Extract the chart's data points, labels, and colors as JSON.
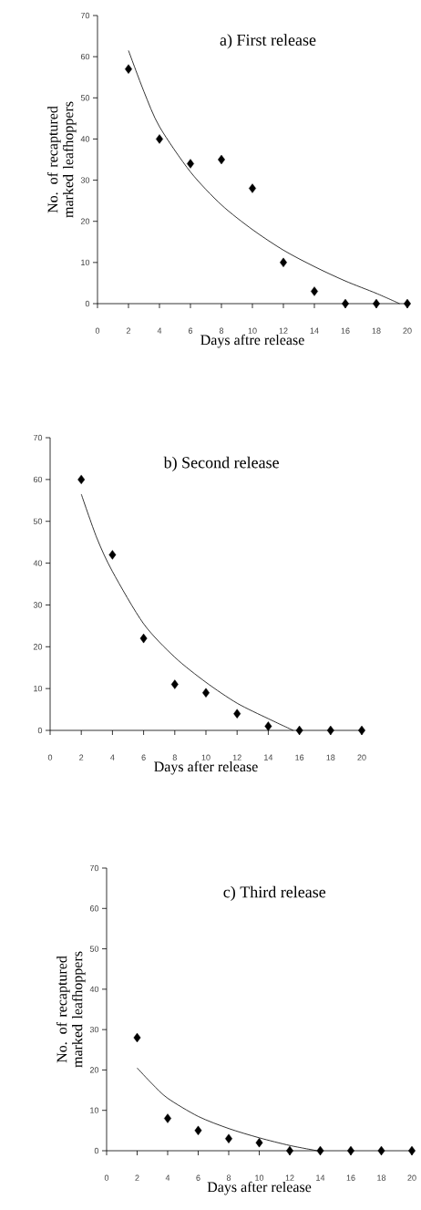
{
  "chart_data": [
    {
      "type": "scatter",
      "title": "a) First release",
      "xlabel": "Days aftre release",
      "ylabel": "No. of recaptured marked leafhoppers",
      "marker": "diamond",
      "xlim": [
        0,
        20
      ],
      "ylim": [
        0,
        70
      ],
      "xticks": [
        0,
        2,
        4,
        6,
        8,
        10,
        12,
        14,
        16,
        18,
        20
      ],
      "yticks": [
        0,
        10,
        20,
        30,
        40,
        50,
        60,
        70
      ],
      "series": [
        {
          "color": "#000000",
          "x": [
            2,
            4,
            6,
            8,
            10,
            12,
            14,
            16,
            18,
            20
          ],
          "values": [
            57,
            40,
            34,
            35,
            28,
            10,
            3,
            0,
            0,
            0
          ]
        },
        {
          "type": "line",
          "marker": "none",
          "color": "#000000",
          "x": [
            2,
            3,
            4,
            6,
            8,
            10,
            12,
            14,
            16,
            18,
            19.5
          ],
          "values": [
            61.5,
            51.5,
            43,
            32,
            24,
            18,
            13,
            9,
            5.5,
            2.5,
            0
          ]
        }
      ]
    },
    {
      "type": "scatter",
      "title": "b) Second release",
      "xlabel": "Days after release",
      "marker": "diamond",
      "xlim": [
        0,
        20
      ],
      "ylim": [
        0,
        70
      ],
      "xticks": [
        0,
        2,
        4,
        6,
        8,
        10,
        12,
        14,
        16,
        18,
        20
      ],
      "yticks": [
        0,
        10,
        20,
        30,
        40,
        50,
        60,
        70
      ],
      "series": [
        {
          "color": "#000000",
          "x": [
            2,
            4,
            6,
            8,
            10,
            12,
            14,
            16,
            18,
            20
          ],
          "values": [
            60,
            42,
            22,
            11,
            9,
            4,
            1,
            0,
            0,
            0
          ]
        },
        {
          "type": "line",
          "marker": "none",
          "color": "#000000",
          "x": [
            2,
            3,
            4,
            6,
            8,
            10,
            12,
            14,
            15.6
          ],
          "values": [
            56.5,
            46,
            38,
            25.5,
            17.5,
            11.5,
            6.5,
            2.8,
            0
          ]
        }
      ]
    },
    {
      "type": "scatter",
      "title": "c) Third release",
      "xlabel": "Days after release",
      "ylabel": "No. of recaptured marked leafhoppers",
      "marker": "diamond",
      "xlim": [
        0,
        20
      ],
      "ylim": [
        0,
        70
      ],
      "xticks": [
        0,
        2,
        4,
        6,
        8,
        10,
        12,
        14,
        16,
        18,
        20
      ],
      "yticks": [
        0,
        10,
        20,
        30,
        40,
        50,
        60,
        70
      ],
      "series": [
        {
          "color": "#000000",
          "x": [
            2,
            4,
            6,
            8,
            10,
            12,
            14,
            16,
            18,
            20
          ],
          "values": [
            28,
            8,
            5,
            3,
            2,
            0,
            0,
            0,
            0,
            0
          ]
        },
        {
          "type": "line",
          "marker": "none",
          "color": "#000000",
          "x": [
            2,
            3,
            4,
            6,
            8,
            10,
            12,
            13.8
          ],
          "values": [
            20.5,
            16.5,
            13,
            8.5,
            5.5,
            3.2,
            1.3,
            0
          ]
        }
      ]
    }
  ]
}
